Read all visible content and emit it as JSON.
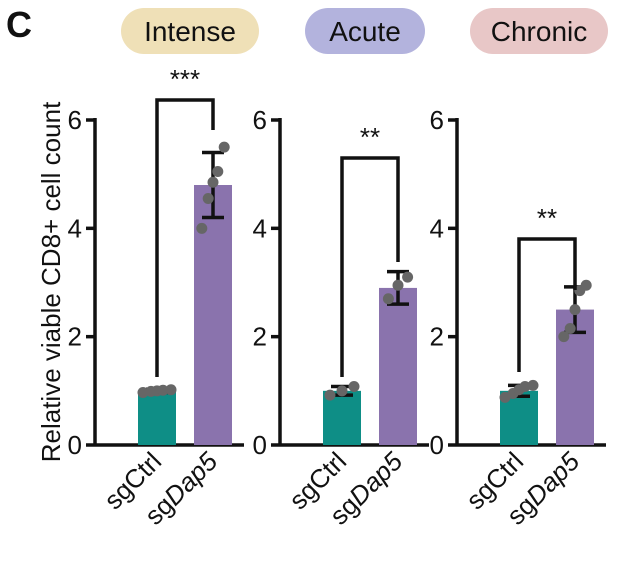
{
  "figure": {
    "panel_letter": "C",
    "ylabel": "Relative viable CD8+ cell count"
  },
  "colors": {
    "sgCtrl": "#0e8e86",
    "sgDap5": "#8a73ad",
    "Intense": "#efe0b7",
    "Acute": "#b3b3dd",
    "Chronic": "#e8c7c7"
  },
  "chart_data": [
    {
      "type": "bar",
      "title": "Intense",
      "categories": [
        {
          "prefix": "sg",
          "rest": "Ctrl",
          "italic": false
        },
        {
          "prefix": "sg",
          "rest": "Dap5",
          "italic": true
        }
      ],
      "values": [
        1.0,
        4.8
      ],
      "errors": [
        0.03,
        0.6
      ],
      "points": [
        [
          0.97,
          0.99,
          1.0,
          1.01,
          1.02
        ],
        [
          4.0,
          4.55,
          4.85,
          5.05,
          5.5
        ]
      ],
      "yticks": [
        0,
        2,
        4,
        6
      ],
      "ylim": [
        0,
        6
      ],
      "significance": "***"
    },
    {
      "type": "bar",
      "title": "Acute",
      "categories": [
        {
          "prefix": "sg",
          "rest": "Ctrl",
          "italic": false
        },
        {
          "prefix": "sg",
          "rest": "Dap5",
          "italic": true
        }
      ],
      "values": [
        1.0,
        2.9
      ],
      "errors": [
        0.08,
        0.3
      ],
      "points": [
        [
          0.92,
          1.0,
          1.08
        ],
        [
          2.7,
          2.95,
          3.1
        ]
      ],
      "yticks": [
        0,
        2,
        4,
        6
      ],
      "ylim": [
        0,
        6
      ],
      "significance": "**"
    },
    {
      "type": "bar",
      "title": "Chronic",
      "categories": [
        {
          "prefix": "sg",
          "rest": "Ctrl",
          "italic": false
        },
        {
          "prefix": "sg",
          "rest": "Dap5",
          "italic": true
        }
      ],
      "values": [
        1.0,
        2.5
      ],
      "errors": [
        0.1,
        0.42
      ],
      "points": [
        [
          0.88,
          0.95,
          1.02,
          1.08,
          1.1
        ],
        [
          2.0,
          2.15,
          2.5,
          2.85,
          2.95
        ]
      ],
      "yticks": [
        0,
        2,
        4,
        6
      ],
      "ylim": [
        0,
        6
      ],
      "significance": "**"
    }
  ]
}
